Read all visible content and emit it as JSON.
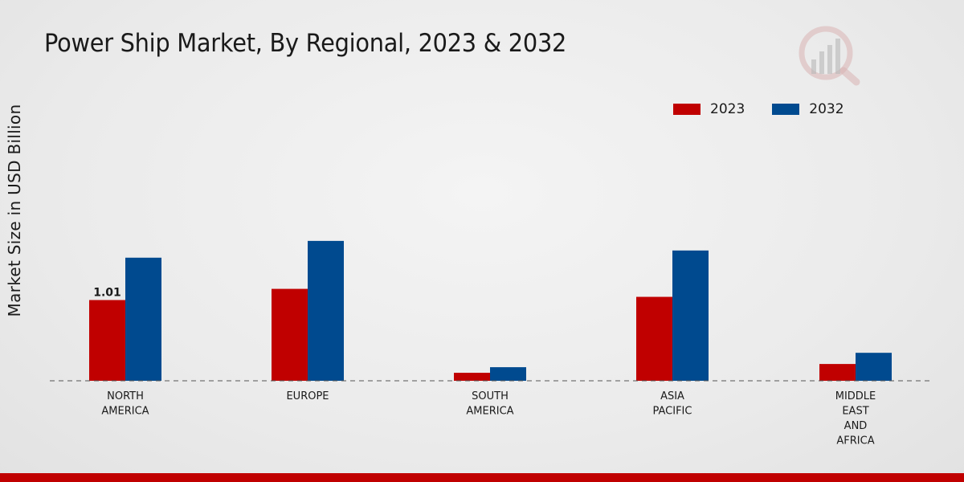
{
  "chart_data": {
    "type": "bar",
    "title": "Power Ship Market, By Regional, 2023 & 2032",
    "xlabel": "",
    "ylabel": "Market Size in USD Billion",
    "ylim": [
      0,
      3.0
    ],
    "categories": [
      [
        "NORTH",
        "AMERICA"
      ],
      [
        "EUROPE"
      ],
      [
        "SOUTH",
        "AMERICA"
      ],
      [
        "ASIA",
        "PACIFIC"
      ],
      [
        "MIDDLE",
        "EAST",
        "AND",
        "AFRICA"
      ]
    ],
    "series": [
      {
        "name": "2023",
        "color": "#c00000",
        "values": [
          1.01,
          1.15,
          0.1,
          1.05,
          0.21
        ]
      },
      {
        "name": "2032",
        "color": "#004a8f",
        "values": [
          1.54,
          1.75,
          0.17,
          1.63,
          0.35
        ]
      }
    ],
    "data_labels": [
      {
        "series": 0,
        "index": 0,
        "text": "1.01"
      }
    ],
    "legend_position": "top-right",
    "grid": false
  },
  "legend": {
    "items": [
      {
        "label": "2023",
        "color": "#c00000"
      },
      {
        "label": "2032",
        "color": "#004a8f"
      }
    ]
  },
  "watermark": {
    "icon": "magnifier-chart-icon"
  }
}
